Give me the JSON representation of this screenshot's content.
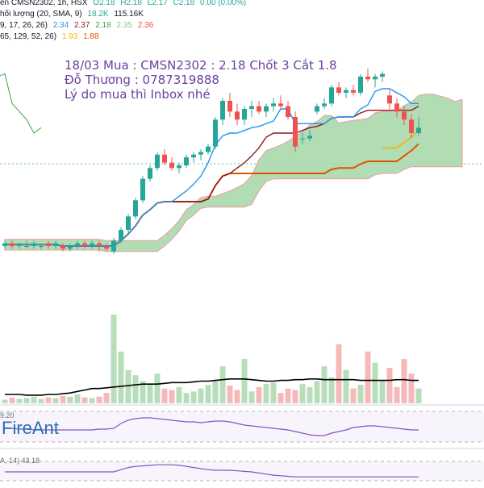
{
  "legend": {
    "line1": "ên CMSN2302, 1h, HSX",
    "ohlc": [
      "O2.18",
      "H2.18",
      "L2.17",
      "C2.18",
      "0.00 (0.00%)"
    ],
    "line2_label": "hối lượng (20, SMA, 9)",
    "line2_values": [
      "18.2K",
      "115.16K"
    ],
    "line3_label": "9, 17, 26, 26)",
    "line3_values": [
      "2.34",
      "2.37",
      "2.18",
      "2.35",
      "2.36"
    ],
    "line4_label": "65, 129, 52, 26)",
    "line4_values": [
      "1.93",
      "1.88"
    ]
  },
  "annotation": {
    "line1": "18/03 Mua : CMSN2302 : 2.18 Chốt 3 Cắt 1.8",
    "line2": "Đỗ Thương : 0787319888",
    "line3": "Lý do mua thì Inbox nhé"
  },
  "brand": "FireAnt",
  "oscillators": {
    "rsi_label": "9.20",
    "mfi_label": "A, 14)",
    "mfi_value": "43.18"
  },
  "colors": {
    "up": "#26a69a",
    "down": "#ef5350",
    "tenkan": "#2196f3",
    "kijun": "#8b1a1a",
    "slow": "#e65100",
    "yellow": "#f2b705",
    "chikou": "#43a047",
    "cloud_up": "#a5d6a7",
    "cloud_down": "#ef9a9a",
    "note": "#6b3fa0",
    "brand": "#2e6db4"
  },
  "chart_data": {
    "type": "candlestick",
    "ylim": [
      1.7,
      2.9
    ],
    "candles": [
      [
        2.0,
        2.02,
        1.99,
        2.01
      ],
      [
        2.01,
        2.02,
        1.99,
        2.0
      ],
      [
        2.0,
        2.01,
        1.99,
        2.01
      ],
      [
        2.0,
        2.02,
        1.99,
        2.0
      ],
      [
        2.0,
        2.02,
        1.99,
        2.01
      ],
      [
        2.0,
        2.01,
        1.99,
        2.0
      ],
      [
        2.01,
        2.02,
        1.99,
        2.0
      ],
      [
        2.0,
        2.02,
        1.99,
        2.01
      ],
      [
        2.0,
        2.01,
        1.98,
        1.99
      ],
      [
        1.99,
        2.01,
        1.98,
        2.0
      ],
      [
        2.0,
        2.02,
        1.99,
        2.01
      ],
      [
        2.01,
        2.02,
        1.99,
        2.0
      ],
      [
        2.0,
        2.02,
        1.99,
        2.01
      ],
      [
        2.01,
        2.02,
        1.98,
        2.0
      ],
      [
        2.0,
        2.01,
        1.98,
        1.99
      ],
      [
        1.98,
        2.03,
        1.97,
        2.02
      ],
      [
        2.02,
        2.07,
        2.01,
        2.06
      ],
      [
        2.06,
        2.12,
        2.05,
        2.11
      ],
      [
        2.11,
        2.18,
        2.1,
        2.17
      ],
      [
        2.17,
        2.26,
        2.16,
        2.25
      ],
      [
        2.25,
        2.3,
        2.24,
        2.29
      ],
      [
        2.29,
        2.35,
        2.28,
        2.34
      ],
      [
        2.34,
        2.36,
        2.3,
        2.31
      ],
      [
        2.31,
        2.33,
        2.28,
        2.29
      ],
      [
        2.29,
        2.31,
        2.27,
        2.3
      ],
      [
        2.3,
        2.34,
        2.29,
        2.33
      ],
      [
        2.33,
        2.35,
        2.31,
        2.34
      ],
      [
        2.34,
        2.36,
        2.32,
        2.35
      ],
      [
        2.35,
        2.38,
        2.34,
        2.37
      ],
      [
        2.37,
        2.48,
        2.36,
        2.47
      ],
      [
        2.47,
        2.55,
        2.45,
        2.54
      ],
      [
        2.54,
        2.57,
        2.48,
        2.5
      ],
      [
        2.5,
        2.53,
        2.45,
        2.47
      ],
      [
        2.47,
        2.52,
        2.45,
        2.51
      ],
      [
        2.51,
        2.54,
        2.48,
        2.52
      ],
      [
        2.52,
        2.54,
        2.49,
        2.5
      ],
      [
        2.5,
        2.53,
        2.48,
        2.52
      ],
      [
        2.52,
        2.55,
        2.5,
        2.53
      ],
      [
        2.53,
        2.56,
        2.51,
        2.52
      ],
      [
        2.52,
        2.54,
        2.47,
        2.48
      ],
      [
        2.48,
        2.5,
        2.35,
        2.37
      ],
      [
        2.4,
        2.42,
        2.38,
        2.4
      ],
      [
        2.4,
        2.43,
        2.39,
        2.41
      ],
      [
        2.5,
        2.53,
        2.49,
        2.52
      ],
      [
        2.52,
        2.55,
        2.51,
        2.53
      ],
      [
        2.53,
        2.6,
        2.52,
        2.59
      ],
      [
        2.59,
        2.61,
        2.56,
        2.57
      ],
      [
        2.57,
        2.59,
        2.55,
        2.58
      ],
      [
        2.58,
        2.6,
        2.56,
        2.57
      ],
      [
        2.57,
        2.64,
        2.56,
        2.63
      ],
      [
        2.63,
        2.66,
        2.61,
        2.62
      ],
      [
        2.62,
        2.64,
        2.59,
        2.63
      ],
      [
        2.63,
        2.65,
        2.61,
        2.64
      ],
      [
        2.56,
        2.58,
        2.51,
        2.53
      ],
      [
        2.53,
        2.55,
        2.48,
        2.5
      ],
      [
        2.5,
        2.52,
        2.45,
        2.47
      ],
      [
        2.47,
        2.49,
        2.4,
        2.42
      ],
      [
        2.42,
        2.48,
        2.41,
        2.44
      ]
    ],
    "volume": [
      5,
      8,
      6,
      7,
      9,
      6,
      8,
      7,
      10,
      9,
      12,
      8,
      7,
      9,
      14,
      120,
      70,
      45,
      38,
      30,
      26,
      40,
      20,
      18,
      22,
      14,
      16,
      20,
      25,
      30,
      50,
      24,
      18,
      60,
      16,
      22,
      26,
      28,
      14,
      20,
      18,
      26,
      22,
      30,
      50,
      35,
      80,
      45,
      20,
      25,
      70,
      55,
      30,
      48,
      22,
      60,
      40,
      20
    ],
    "volume_sma": [
      12,
      12,
      12,
      11,
      11,
      11,
      12,
      12,
      13,
      14,
      16,
      18,
      20,
      20,
      21,
      22,
      23,
      24,
      25,
      26,
      26,
      26,
      27,
      28,
      28,
      28,
      29,
      30,
      30,
      31,
      32,
      33,
      33,
      33,
      32,
      31,
      30,
      30,
      31,
      31,
      32,
      32,
      33,
      33,
      32,
      32,
      32,
      32,
      32,
      31,
      31,
      31,
      31,
      31,
      32,
      32,
      31,
      31
    ],
    "rsi": [
      54,
      54,
      53,
      53,
      52,
      52,
      52,
      52,
      52,
      52,
      52,
      52,
      52,
      53,
      53,
      54,
      60,
      64,
      66,
      67,
      67,
      66,
      65,
      64,
      63,
      62,
      62,
      61,
      62,
      63,
      63,
      62,
      60,
      58,
      57,
      56,
      55,
      54,
      53,
      52,
      50,
      48,
      46,
      45,
      45,
      48,
      50,
      52,
      55,
      56,
      57,
      57,
      56,
      55,
      54,
      53,
      52,
      52
    ],
    "mfi": [
      52,
      52,
      52,
      52,
      52,
      52,
      52,
      52,
      52,
      52,
      52,
      52,
      52,
      52,
      52,
      52,
      56,
      60,
      62,
      63,
      64,
      65,
      65,
      65,
      64,
      62,
      60,
      58,
      56,
      55,
      55,
      55,
      54,
      53,
      52,
      50,
      48,
      46,
      45,
      44,
      43,
      43,
      43,
      43,
      43,
      43,
      43,
      43,
      43,
      43,
      43,
      43,
      43,
      43,
      43,
      43,
      43,
      43
    ]
  }
}
